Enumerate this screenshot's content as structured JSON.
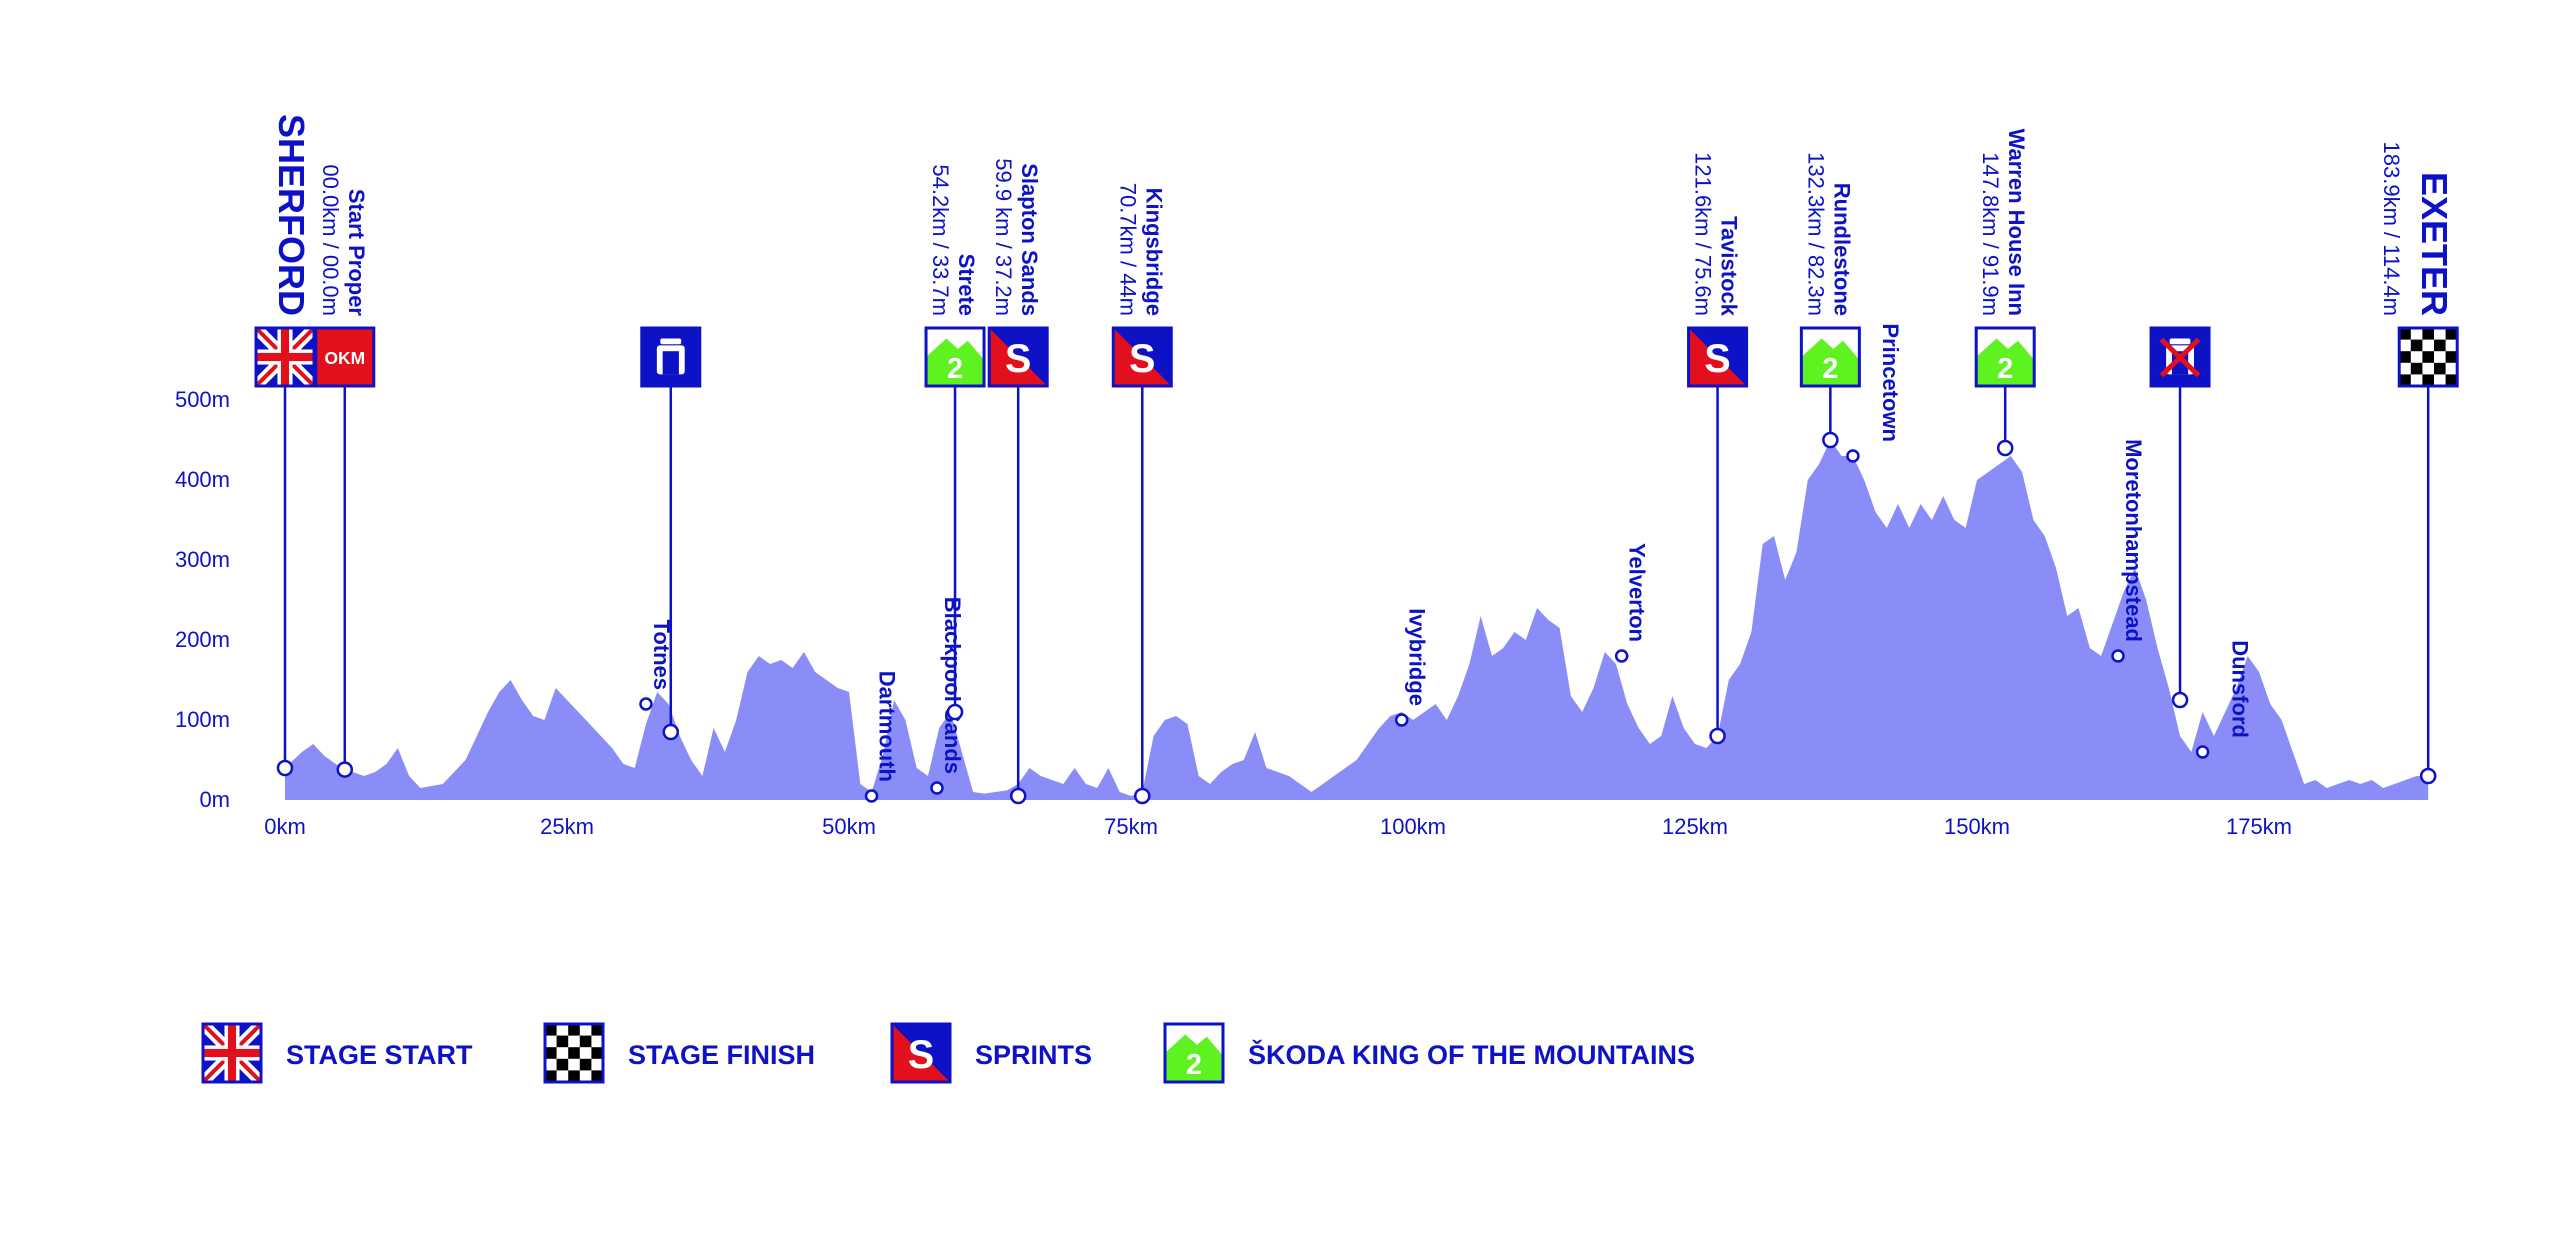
{
  "colors": {
    "primary": "#0d12c6",
    "profile_fill": "#8a8cf7",
    "flag_red": "#e1101c",
    "mountain_green": "#5ef221",
    "white": "#ffffff",
    "black": "#000000"
  },
  "chart_data": {
    "type": "area",
    "title": "",
    "xlabel": "",
    "ylabel": "",
    "xlim": [
      0,
      190
    ],
    "ylim": [
      0,
      500
    ],
    "grid": false,
    "legend_position": "bottom-left",
    "x_ticks": [
      {
        "value": 0,
        "label": "0km"
      },
      {
        "value": 25,
        "label": "25km"
      },
      {
        "value": 50,
        "label": "50km"
      },
      {
        "value": 75,
        "label": "75km"
      },
      {
        "value": 100,
        "label": "100km"
      },
      {
        "value": 125,
        "label": "125km"
      },
      {
        "value": 150,
        "label": "150km"
      },
      {
        "value": 175,
        "label": "175km"
      }
    ],
    "y_ticks": [
      {
        "value": 0,
        "label": "0m"
      },
      {
        "value": 100,
        "label": "100m"
      },
      {
        "value": 200,
        "label": "200m"
      },
      {
        "value": 300,
        "label": "300m"
      },
      {
        "value": 400,
        "label": "400m"
      },
      {
        "value": 500,
        "label": "500m"
      }
    ],
    "series": [
      {
        "x": [
          0,
          1.5,
          2.5,
          3.5,
          4.5,
          5,
          6,
          7,
          8,
          9,
          10,
          11,
          12,
          14,
          16,
          17,
          18,
          19,
          20,
          21,
          22,
          23,
          24,
          25,
          26,
          27,
          28,
          29,
          30,
          31,
          32,
          33,
          34,
          35,
          36,
          37,
          38,
          39,
          40,
          41,
          42,
          43,
          44,
          45,
          46,
          47,
          48,
          49,
          50,
          51,
          52,
          53,
          54,
          55,
          56,
          57,
          58,
          59,
          60,
          61,
          62,
          63,
          64,
          65,
          66,
          67,
          68,
          69,
          70,
          71,
          72,
          73,
          74,
          75,
          76,
          77,
          78,
          79,
          80,
          81,
          82,
          83,
          84,
          85,
          86,
          87,
          88,
          89,
          90,
          91,
          92,
          93,
          94,
          95,
          96,
          97,
          98,
          99,
          100,
          101,
          102,
          103,
          104,
          105,
          106,
          107,
          108,
          109,
          110,
          111,
          112,
          113,
          114,
          115,
          116,
          117,
          118,
          119,
          120,
          121,
          122,
          123,
          124,
          125,
          126,
          127,
          128,
          129,
          130,
          131,
          132,
          133,
          134,
          135,
          136,
          137,
          138,
          139,
          140,
          141,
          142,
          143,
          144,
          145,
          146,
          147,
          148,
          149,
          150,
          151,
          152,
          153,
          154,
          155,
          156,
          157,
          158,
          159,
          160,
          161,
          162,
          163,
          164,
          165,
          166,
          167,
          168,
          169,
          170,
          171,
          172,
          173,
          174,
          175,
          176,
          177,
          178,
          179,
          180,
          181,
          182,
          183,
          184,
          185,
          186,
          187,
          188,
          189,
          190
        ],
        "y": [
          40,
          60,
          70,
          55,
          45,
          40,
          35,
          30,
          35,
          45,
          65,
          30,
          15,
          20,
          50,
          80,
          110,
          135,
          150,
          125,
          105,
          100,
          140,
          125,
          110,
          95,
          80,
          65,
          45,
          40,
          95,
          135,
          120,
          80,
          50,
          30,
          90,
          60,
          100,
          160,
          180,
          170,
          175,
          165,
          185,
          160,
          150,
          140,
          135,
          20,
          10,
          55,
          125,
          100,
          40,
          30,
          90,
          110,
          60,
          10,
          8,
          10,
          12,
          20,
          40,
          30,
          25,
          20,
          40,
          20,
          15,
          40,
          10,
          5,
          10,
          80,
          100,
          105,
          95,
          30,
          20,
          35,
          45,
          50,
          85,
          40,
          35,
          30,
          20,
          10,
          20,
          30,
          40,
          50,
          70,
          90,
          105,
          110,
          100,
          110,
          120,
          100,
          130,
          170,
          230,
          180,
          190,
          210,
          200,
          240,
          225,
          215,
          130,
          110,
          140,
          185,
          170,
          120,
          90,
          70,
          80,
          130,
          90,
          70,
          65,
          80,
          150,
          170,
          210,
          320,
          330,
          275,
          310,
          400,
          420,
          450,
          430,
          430,
          400,
          360,
          340,
          370,
          340,
          370,
          350,
          380,
          350,
          340,
          400,
          410,
          420,
          430,
          410,
          350,
          330,
          290,
          230,
          240,
          190,
          180,
          220,
          260,
          290,
          250,
          190,
          140,
          80,
          60,
          110,
          80,
          110,
          140,
          180,
          160,
          120,
          100,
          60,
          20,
          25,
          15,
          20,
          25,
          20,
          25,
          15,
          20,
          25,
          30,
          30
        ]
      }
    ],
    "labels": [
      {
        "name": "SHERFORD",
        "detail": "",
        "x": 0,
        "y": 40,
        "flag": "start",
        "style": "major"
      },
      {
        "name": "Start Proper",
        "detail": "00.0km / 00.0m",
        "x": 5.3,
        "y": 38,
        "flag": "okm",
        "style": "normal"
      },
      {
        "name": "Totnes",
        "detail": "",
        "x": 32,
        "y": 120,
        "flag": "",
        "style": "small"
      },
      {
        "name": "",
        "detail": "",
        "x": 34.2,
        "y": 85,
        "flag": "feed",
        "style": "none"
      },
      {
        "name": "Dartmouth",
        "detail": "",
        "x": 52,
        "y": 5,
        "flag": "",
        "style": "small"
      },
      {
        "name": "Blackpool Sands",
        "detail": "",
        "x": 57.8,
        "y": 15,
        "flag": "",
        "style": "small"
      },
      {
        "name": "Strete",
        "detail": "54.2km / 33.7m",
        "x": 59.4,
        "y": 110,
        "flag": "kom",
        "style": "normal"
      },
      {
        "name": "Slapton Sands",
        "detail": "59.9 km / 37.2m",
        "x": 65,
        "y": 5,
        "flag": "sprint",
        "style": "normal"
      },
      {
        "name": "Kingsbridge",
        "detail": "70.7km / 44m",
        "x": 76,
        "y": 5,
        "flag": "sprint",
        "style": "normal"
      },
      {
        "name": "Ivybridge",
        "detail": "",
        "x": 99,
        "y": 100,
        "flag": "",
        "style": "small"
      },
      {
        "name": "Yelverton",
        "detail": "",
        "x": 118.5,
        "y": 180,
        "flag": "",
        "style": "small"
      },
      {
        "name": "Tavistock",
        "detail": "121.6km / 75.6m",
        "x": 127,
        "y": 80,
        "flag": "sprint",
        "style": "normal"
      },
      {
        "name": "Rundlestone",
        "detail": "132.3km / 82.3m",
        "x": 137,
        "y": 450,
        "flag": "kom",
        "style": "normal"
      },
      {
        "name": "Princetown",
        "detail": "",
        "x": 139,
        "y": 430,
        "flag": "",
        "style": "small-right"
      },
      {
        "name": "Warren House Inn",
        "detail": "147.8km / 91.9m",
        "x": 152.5,
        "y": 440,
        "flag": "kom",
        "style": "normal"
      },
      {
        "name": "Moretonhampstead",
        "detail": "",
        "x": 162.5,
        "y": 180,
        "flag": "",
        "style": "small"
      },
      {
        "name": "",
        "detail": "",
        "x": 168,
        "y": 125,
        "flag": "feed-crossed",
        "style": "none"
      },
      {
        "name": "Dunsford",
        "detail": "",
        "x": 170,
        "y": 60,
        "flag": "",
        "style": "small-right"
      },
      {
        "name": "EXETER",
        "detail": "183.9km / 114.4m",
        "x": 190,
        "y": 30,
        "flag": "finish",
        "style": "major"
      }
    ]
  },
  "flag_texts": {
    "okm": "OKM",
    "sprint": "S",
    "kom": "2"
  },
  "legend": [
    {
      "icon": "start",
      "label": "STAGE START"
    },
    {
      "icon": "finish",
      "label": "STAGE FINISH"
    },
    {
      "icon": "sprint",
      "label": "SPRINTS"
    },
    {
      "icon": "kom",
      "label": "ŠKODA KING OF THE MOUNTAINS"
    }
  ]
}
